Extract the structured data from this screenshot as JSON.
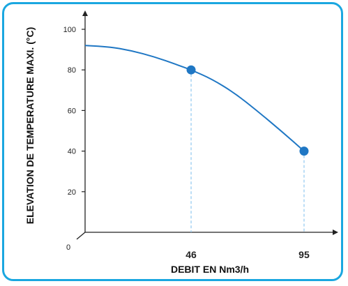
{
  "chart_data": {
    "type": "line",
    "title": "",
    "xlabel": "DEBIT EN Nm3/h",
    "ylabel": "ELEVATION DE TEMPERATURE MAXI. (°C)",
    "xlim": [
      0,
      104
    ],
    "ylim": [
      0,
      105
    ],
    "yticks": [
      20,
      40,
      60,
      80,
      100
    ],
    "yticks_text": [
      "20",
      "40",
      "60",
      "80",
      "100"
    ],
    "xticks": [
      46,
      95
    ],
    "xticks_text": [
      "46",
      "95"
    ],
    "origin_label": "0",
    "grid": false,
    "series": [
      {
        "x": [
          0,
          10,
          20,
          30,
          40,
          46,
          55,
          65,
          75,
          85,
          95
        ],
        "y": [
          92,
          91.5,
          89.5,
          86.5,
          82.5,
          80,
          75.5,
          68.5,
          59.5,
          50,
          40
        ]
      }
    ],
    "markers": [
      {
        "x": 46,
        "y": 80
      },
      {
        "x": 95,
        "y": 40
      }
    ],
    "colors": {
      "line": "#1f77c4",
      "marker": "#1f77c4",
      "guide": "#8fc7f0",
      "axis": "#222222",
      "frame": "#1aa7e0"
    }
  }
}
